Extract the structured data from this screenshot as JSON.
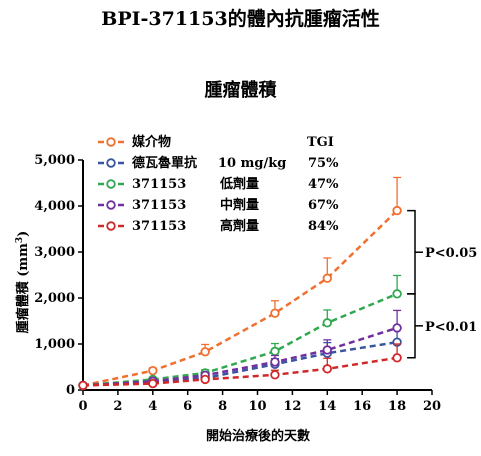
{
  "page_title": "BPI-371153的體內抗腫瘤活性",
  "chart_data": {
    "type": "line",
    "title": "腫瘤體積",
    "xlabel": "開始治療後的天數",
    "ylabel": "腫瘤體積 (mm³)",
    "ylabel_main": "腫瘤體積 (mm",
    "ylabel_sup": "3",
    "ylabel_close": ")",
    "xlim": [
      0,
      20
    ],
    "ylim": [
      0,
      5000
    ],
    "x_ticks": [
      0,
      2,
      4,
      6,
      8,
      10,
      12,
      14,
      16,
      18,
      20
    ],
    "y_ticks": [
      0,
      1000,
      2000,
      3000,
      4000,
      5000
    ],
    "y_tick_labels": [
      "0",
      "1,000",
      "2,000",
      "3,000",
      "4,000",
      "5,000"
    ],
    "legend_header": "TGI",
    "series": [
      {
        "name": "媒介物",
        "dose": "",
        "tgi": "",
        "color": "#f07030",
        "x": [
          0,
          4,
          7,
          11,
          14,
          18
        ],
        "y": [
          100,
          420,
          830,
          1670,
          2430,
          3900
        ],
        "err": [
          0,
          60,
          160,
          270,
          440,
          720
        ]
      },
      {
        "name": "德瓦魯單抗",
        "dose": "10 mg/kg",
        "tgi": "75%",
        "color": "#3a55a0",
        "x": [
          0,
          4,
          7,
          11,
          14,
          18
        ],
        "y": [
          100,
          170,
          260,
          560,
          800,
          1040
        ],
        "err": [
          0,
          30,
          60,
          120,
          230,
          330
        ]
      },
      {
        "name": "371153",
        "dose": "低劑量",
        "tgi": "47%",
        "color": "#30a850",
        "x": [
          0,
          4,
          7,
          11,
          14,
          18
        ],
        "y": [
          100,
          230,
          370,
          840,
          1460,
          2090
        ],
        "err": [
          0,
          40,
          70,
          170,
          280,
          400
        ]
      },
      {
        "name": "371153",
        "dose": "中劑量",
        "tgi": "67%",
        "color": "#7030a0",
        "x": [
          0,
          4,
          7,
          11,
          14,
          18
        ],
        "y": [
          100,
          190,
          320,
          610,
          870,
          1350
        ],
        "err": [
          0,
          35,
          60,
          140,
          220,
          380
        ]
      },
      {
        "name": "371153",
        "dose": "高劑量",
        "tgi": "84%",
        "color": "#d02828",
        "x": [
          0,
          4,
          7,
          11,
          14,
          18
        ],
        "y": [
          100,
          140,
          230,
          330,
          460,
          700
        ],
        "err": [
          0,
          30,
          50,
          100,
          230,
          300
        ]
      }
    ],
    "annotations": [
      {
        "text": "P<0.05",
        "from_series": 0,
        "to_series": 2
      },
      {
        "text": "P<0.01",
        "from_series": 2,
        "to_series": 4
      }
    ]
  }
}
